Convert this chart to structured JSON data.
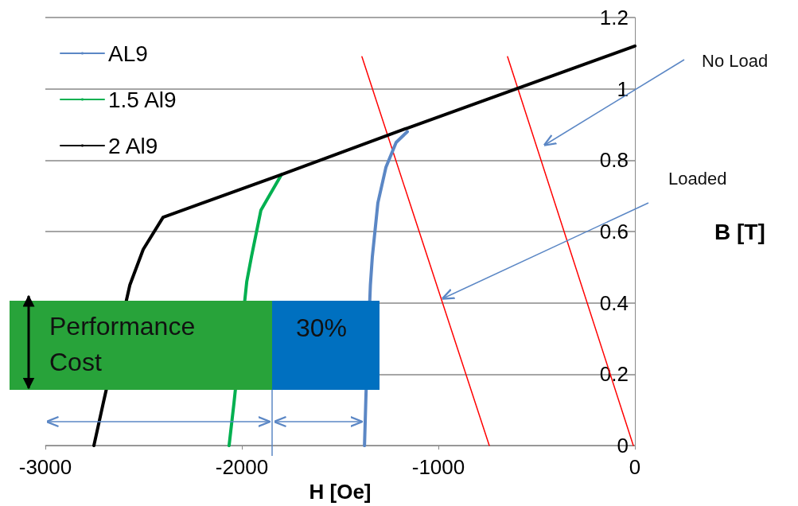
{
  "chart_data": {
    "type": "line",
    "xlabel": "H [Oe]",
    "ylabel": "B [T]",
    "xlim": [
      -3000,
      0
    ],
    "xticks": [
      -3000,
      -2000,
      -1000,
      0
    ],
    "ylim": [
      0,
      1.2
    ],
    "yticks": [
      0,
      0.2,
      0.4,
      0.6,
      0.8,
      1,
      1.2
    ],
    "grid": "y",
    "legend": "top left",
    "series": [
      {
        "name": "AL9",
        "color": "#5b87c5",
        "x": [
          -1376,
          -1368,
          -1346,
          -1336,
          -1308,
          -1267,
          -1215,
          -1158
        ],
        "values": [
          0,
          0.15,
          0.45,
          0.53,
          0.68,
          0.78,
          0.85,
          0.88
        ]
      },
      {
        "name": "1.5 Al9",
        "color": "#00b050",
        "x": [
          -2065,
          -2040,
          -1975,
          -1951,
          -1903,
          -1798
        ],
        "values": [
          0,
          0.12,
          0.46,
          0.53,
          0.66,
          0.76
        ]
      },
      {
        "name": "2 Al9",
        "color": "#000000",
        "x": [
          -2753,
          -2705,
          -2570,
          -2502,
          -2401,
          -1798,
          -1158,
          0
        ],
        "values": [
          0,
          0.12,
          0.45,
          0.55,
          0.64,
          0.76,
          0.89,
          1.12
        ]
      },
      {
        "color": "#ff0000",
        "x": [
          -1389,
          -741
        ],
        "values": [
          1.09,
          0
        ]
      },
      {
        "color": "#ff0000",
        "x": [
          -648,
          -8
        ],
        "values": [
          1.09,
          0
        ]
      }
    ],
    "annotations": [
      "No Load",
      "Loaded",
      "Performance\nCost",
      "30%"
    ]
  }
}
